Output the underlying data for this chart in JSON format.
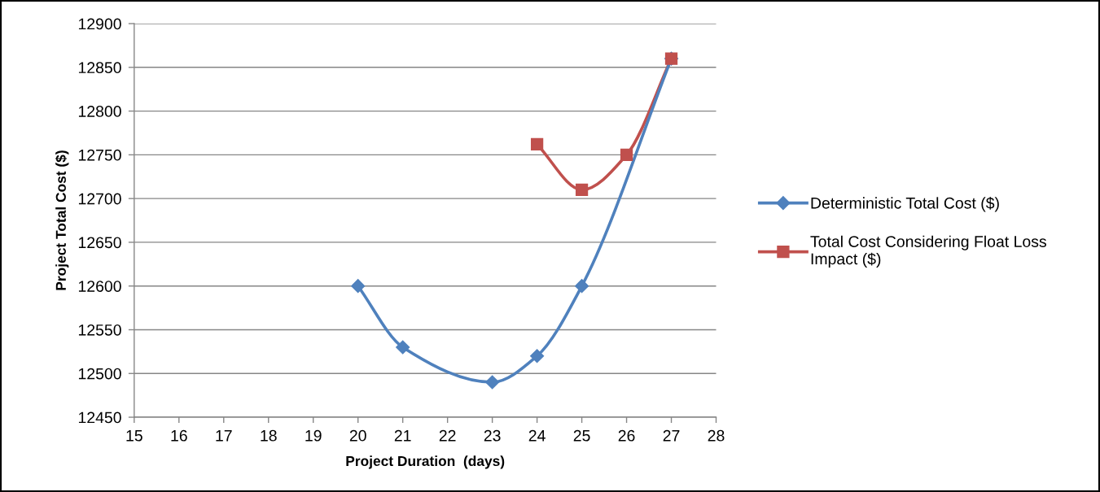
{
  "chart_data": {
    "type": "line",
    "xlabel": "Project Duration  (days)",
    "ylabel": "Project Total Cost ($)",
    "xlim": [
      15,
      28
    ],
    "xticks": [
      15,
      16,
      17,
      18,
      19,
      20,
      21,
      22,
      23,
      24,
      25,
      26,
      27,
      28
    ],
    "ylim": [
      12450,
      12900
    ],
    "yticks": [
      12450,
      12500,
      12550,
      12600,
      12650,
      12700,
      12750,
      12800,
      12850,
      12900
    ],
    "grid": "y",
    "legend": "right",
    "line_style": "solid",
    "series": [
      {
        "name": "Deterministic Total Cost ($)",
        "color": "#4f81bd",
        "marker": "diamond",
        "x": [
          20,
          21,
          23,
          24,
          25,
          27
        ],
        "values": [
          12600,
          12530,
          12490,
          12520,
          12600,
          12860
        ]
      },
      {
        "name": "Total Cost Considering Float Loss Impact ($)",
        "color": "#c0504d",
        "marker": "square",
        "x": [
          24,
          25,
          26,
          27
        ],
        "values": [
          12762,
          12710,
          12750,
          12860
        ]
      }
    ]
  }
}
